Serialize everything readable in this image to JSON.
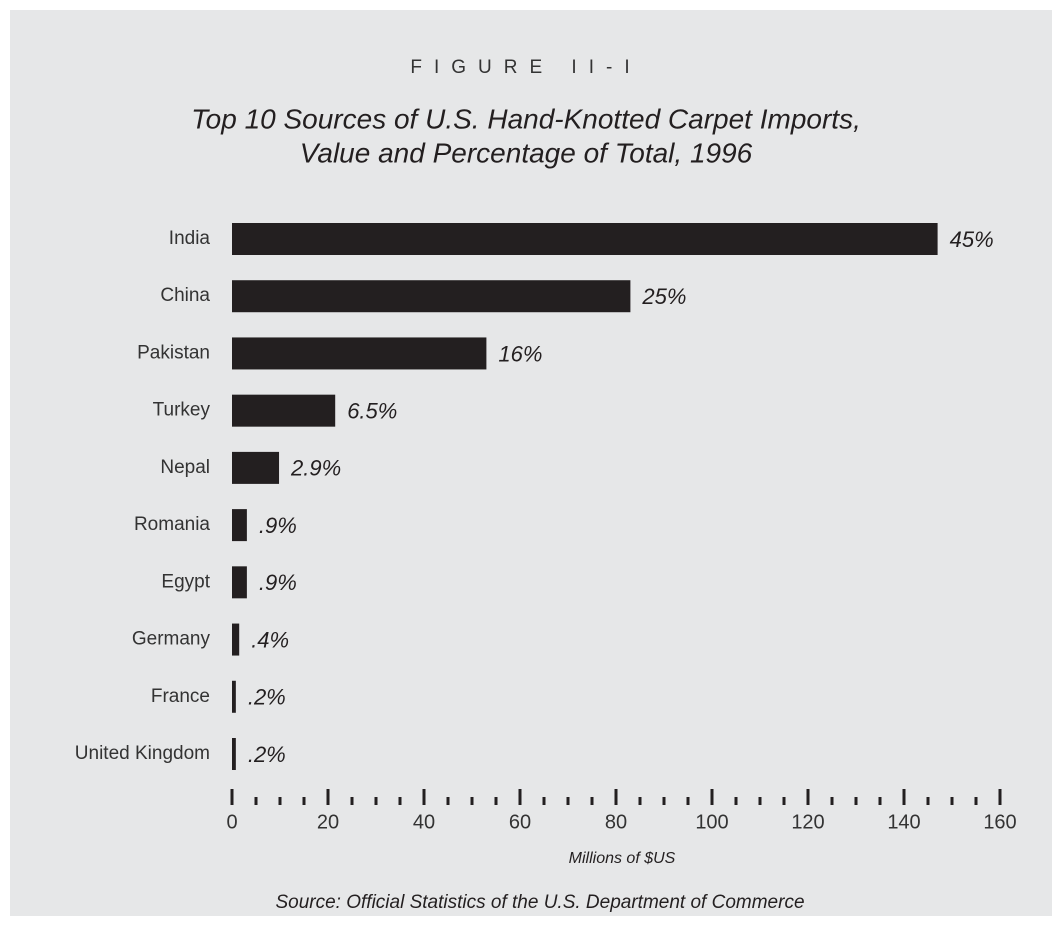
{
  "chart_data": {
    "type": "bar",
    "orientation": "horizontal",
    "figure_label": "FIGURE II-I",
    "title": [
      "Top 10 Sources of U.S. Hand-Knotted Carpet Imports,",
      "Value and Percentage of Total, 1996"
    ],
    "categories": [
      "India",
      "China",
      "Pakistan",
      "Turkey",
      "Nepal",
      "Romania",
      "Egypt",
      "Germany",
      "France",
      "United Kingdom"
    ],
    "values": [
      147,
      83,
      53,
      21.5,
      9.8,
      3.1,
      3.1,
      1.5,
      0.8,
      0.8
    ],
    "share_labels": [
      "45%",
      "25%",
      "16%",
      "6.5%",
      "2.9%",
      ".9%",
      ".9%",
      ".4%",
      ".2%",
      ".2%"
    ],
    "color": "#231f20",
    "xlim": [
      0,
      160
    ],
    "xticks": [
      0,
      20,
      40,
      60,
      80,
      100,
      120,
      140,
      160
    ],
    "xlabel": "Millions of $US",
    "source": "Source: Official Statistics of the U.S. Department of Commerce"
  }
}
